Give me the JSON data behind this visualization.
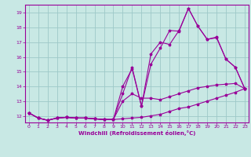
{
  "xlabel": "Windchill (Refroidissement éolien,°C)",
  "bg_color": "#c8e8e4",
  "grid_color": "#9ec8c8",
  "line_color": "#990099",
  "xlim_min": -0.4,
  "xlim_max": 23.4,
  "ylim_min": 11.55,
  "ylim_max": 19.55,
  "xticks": [
    0,
    1,
    2,
    3,
    4,
    5,
    6,
    7,
    8,
    9,
    10,
    11,
    12,
    13,
    14,
    15,
    16,
    17,
    18,
    19,
    20,
    21,
    22,
    23
  ],
  "yticks": [
    12,
    13,
    14,
    15,
    16,
    17,
    18,
    19
  ],
  "line1_x": [
    0,
    1,
    2,
    3,
    4,
    5,
    6,
    7,
    8,
    9,
    10,
    11,
    12,
    13,
    14,
    15,
    16,
    17,
    18,
    19,
    20,
    21,
    22,
    23
  ],
  "line1_y": [
    12.2,
    11.85,
    11.7,
    11.85,
    11.9,
    11.85,
    11.85,
    11.8,
    11.75,
    11.75,
    11.8,
    11.85,
    11.9,
    12.0,
    12.1,
    12.3,
    12.5,
    12.6,
    12.8,
    13.0,
    13.2,
    13.4,
    13.6,
    13.85
  ],
  "line2_x": [
    0,
    1,
    2,
    3,
    4,
    5,
    6,
    7,
    8,
    9,
    10,
    11,
    12,
    13,
    14,
    15,
    16,
    17,
    18,
    19,
    20,
    21,
    22,
    23
  ],
  "line2_y": [
    12.2,
    11.85,
    11.7,
    11.85,
    11.9,
    11.85,
    11.85,
    11.8,
    11.75,
    11.75,
    13.0,
    13.5,
    13.2,
    13.2,
    13.1,
    13.3,
    13.5,
    13.7,
    13.9,
    14.0,
    14.1,
    14.15,
    14.2,
    13.85
  ],
  "line3_x": [
    0,
    1,
    2,
    3,
    4,
    5,
    6,
    7,
    8,
    9,
    10,
    11,
    12,
    13,
    14,
    15,
    16,
    17,
    18,
    19,
    20,
    21,
    22,
    23
  ],
  "line3_y": [
    12.2,
    11.85,
    11.7,
    11.85,
    11.9,
    11.85,
    11.85,
    11.8,
    11.75,
    11.75,
    13.5,
    15.3,
    12.65,
    15.5,
    16.6,
    17.8,
    17.75,
    19.3,
    18.1,
    17.2,
    17.3,
    15.85,
    15.3,
    13.85
  ],
  "line4_x": [
    0,
    1,
    2,
    3,
    4,
    5,
    6,
    7,
    8,
    9,
    10,
    11,
    12,
    13,
    14,
    15,
    16,
    17,
    18,
    19,
    20,
    21,
    22,
    23
  ],
  "line4_y": [
    12.2,
    11.85,
    11.7,
    11.85,
    11.9,
    11.85,
    11.85,
    11.8,
    11.75,
    11.75,
    14.0,
    15.2,
    12.65,
    16.2,
    17.0,
    16.85,
    17.8,
    19.3,
    18.1,
    17.2,
    17.35,
    15.85,
    15.3,
    13.85
  ]
}
